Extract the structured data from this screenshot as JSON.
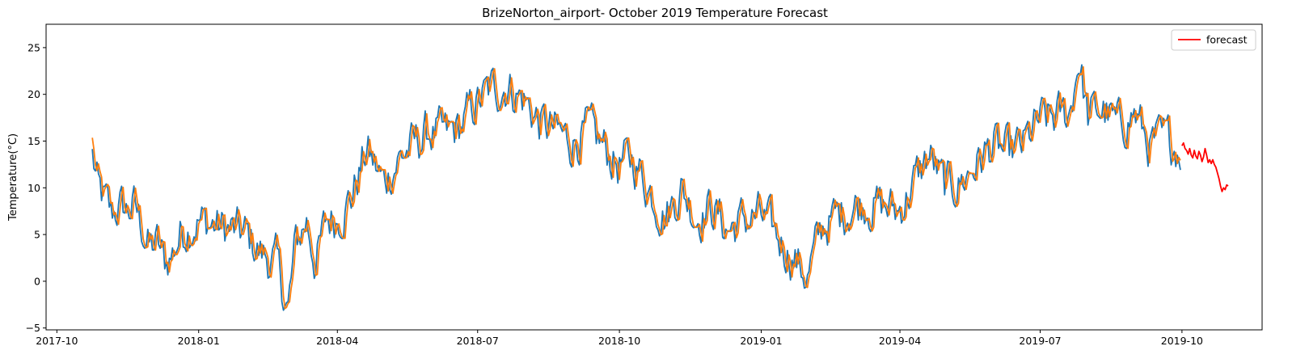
{
  "chart_data": {
    "type": "line",
    "title": "BrizeNorton_airport- October 2019 Temperature Forecast",
    "xlabel": "",
    "ylabel": "Temperature(°C)",
    "xlim": [
      "2017-09-24",
      "2019-11-22"
    ],
    "ylim": [
      -5.2,
      27.5
    ],
    "x_ticks": [
      {
        "date": "2017-10-01",
        "label": "2017-10"
      },
      {
        "date": "2018-01-01",
        "label": "2018-01"
      },
      {
        "date": "2018-04-01",
        "label": "2018-04"
      },
      {
        "date": "2018-07-01",
        "label": "2018-07"
      },
      {
        "date": "2018-10-01",
        "label": "2018-10"
      },
      {
        "date": "2019-01-01",
        "label": "2019-01"
      },
      {
        "date": "2019-04-01",
        "label": "2019-04"
      },
      {
        "date": "2019-07-01",
        "label": "2019-07"
      },
      {
        "date": "2019-10-01",
        "label": "2019-10"
      }
    ],
    "y_ticks": [
      -5,
      0,
      5,
      10,
      15,
      20,
      25
    ],
    "legend": {
      "position": "top-right",
      "entries": [
        {
          "label": "forecast",
          "color": "#ff0000"
        }
      ]
    },
    "series": [
      {
        "name": "observed",
        "color": "#1f77b4",
        "start": "2017-10-24",
        "end": "2019-09-30",
        "knots": [
          [
            "2017-10-24",
            13.5
          ],
          [
            "2017-10-28",
            9.5
          ],
          [
            "2017-11-01",
            8.5
          ],
          [
            "2017-11-05",
            7.0
          ],
          [
            "2017-11-10",
            8.0
          ],
          [
            "2017-11-15",
            7.5
          ],
          [
            "2017-11-20",
            8.0
          ],
          [
            "2017-11-25",
            6.0
          ],
          [
            "2017-11-30",
            3.5
          ],
          [
            "2017-12-05",
            4.0
          ],
          [
            "2017-12-10",
            2.0
          ],
          [
            "2017-12-15",
            3.0
          ],
          [
            "2017-12-20",
            5.0
          ],
          [
            "2017-12-25",
            6.0
          ],
          [
            "2018-01-01",
            6.5
          ],
          [
            "2018-01-10",
            6.0
          ],
          [
            "2018-01-20",
            5.5
          ],
          [
            "2018-01-31",
            5.0
          ],
          [
            "2018-02-10",
            3.0
          ],
          [
            "2018-02-20",
            2.0
          ],
          [
            "2018-02-28",
            -3.0
          ],
          [
            "2018-03-05",
            4.0
          ],
          [
            "2018-03-12",
            6.5
          ],
          [
            "2018-03-18",
            2.0
          ],
          [
            "2018-03-25",
            6.5
          ],
          [
            "2018-04-01",
            7.0
          ],
          [
            "2018-04-10",
            9.0
          ],
          [
            "2018-04-20",
            14.0
          ],
          [
            "2018-05-01",
            10.5
          ],
          [
            "2018-05-10",
            13.0
          ],
          [
            "2018-05-20",
            14.5
          ],
          [
            "2018-05-31",
            16.0
          ],
          [
            "2018-06-10",
            15.5
          ],
          [
            "2018-06-20",
            16.5
          ],
          [
            "2018-06-30",
            19.0
          ],
          [
            "2018-07-10",
            20.5
          ],
          [
            "2018-07-20",
            21.0
          ],
          [
            "2018-07-31",
            19.5
          ],
          [
            "2018-08-10",
            17.0
          ],
          [
            "2018-08-20",
            16.0
          ],
          [
            "2018-08-31",
            15.0
          ],
          [
            "2018-09-10",
            16.0
          ],
          [
            "2018-09-20",
            14.5
          ],
          [
            "2018-09-30",
            12.5
          ],
          [
            "2018-10-10",
            13.0
          ],
          [
            "2018-10-20",
            10.0
          ],
          [
            "2018-10-31",
            7.0
          ],
          [
            "2018-11-10",
            10.0
          ],
          [
            "2018-11-20",
            7.0
          ],
          [
            "2018-11-30",
            8.0
          ],
          [
            "2018-12-10",
            5.5
          ],
          [
            "2018-12-20",
            6.5
          ],
          [
            "2018-12-31",
            7.0
          ],
          [
            "2019-01-10",
            5.0
          ],
          [
            "2019-01-20",
            3.0
          ],
          [
            "2019-01-31",
            0.5
          ],
          [
            "2019-02-10",
            6.0
          ],
          [
            "2019-02-20",
            7.0
          ],
          [
            "2019-02-28",
            8.0
          ],
          [
            "2019-03-10",
            8.5
          ],
          [
            "2019-03-20",
            8.0
          ],
          [
            "2019-03-31",
            7.5
          ],
          [
            "2019-04-10",
            10.5
          ],
          [
            "2019-04-20",
            13.5
          ],
          [
            "2019-04-30",
            10.0
          ],
          [
            "2019-05-10",
            10.5
          ],
          [
            "2019-05-20",
            12.5
          ],
          [
            "2019-05-31",
            14.5
          ],
          [
            "2019-06-10",
            13.5
          ],
          [
            "2019-06-20",
            14.5
          ],
          [
            "2019-06-30",
            17.0
          ],
          [
            "2019-07-10",
            17.5
          ],
          [
            "2019-07-20",
            18.0
          ],
          [
            "2019-07-26",
            24.0
          ],
          [
            "2019-08-01",
            17.5
          ],
          [
            "2019-08-10",
            18.5
          ],
          [
            "2019-08-20",
            16.5
          ],
          [
            "2019-08-31",
            18.0
          ],
          [
            "2019-09-10",
            14.5
          ],
          [
            "2019-09-20",
            15.0
          ],
          [
            "2019-09-30",
            14.5
          ]
        ]
      },
      {
        "name": "fitted",
        "color": "#ff7f0e",
        "start": "2017-10-24",
        "end": "2019-09-30",
        "lag_days": 1
      },
      {
        "name": "forecast",
        "color": "#ff0000",
        "start": "2019-10-01",
        "end": "2019-10-31",
        "values": [
          14.5,
          14.8,
          14.2,
          14.0,
          13.6,
          14.2,
          13.5,
          13.2,
          14.0,
          13.4,
          13.1,
          13.9,
          13.5,
          12.8,
          13.3,
          14.2,
          13.5,
          12.7,
          13.0,
          12.6,
          13.0,
          12.5,
          12.2,
          11.6,
          11.0,
          10.2,
          9.6,
          10.0,
          9.8,
          10.3,
          10.2
        ]
      }
    ]
  }
}
